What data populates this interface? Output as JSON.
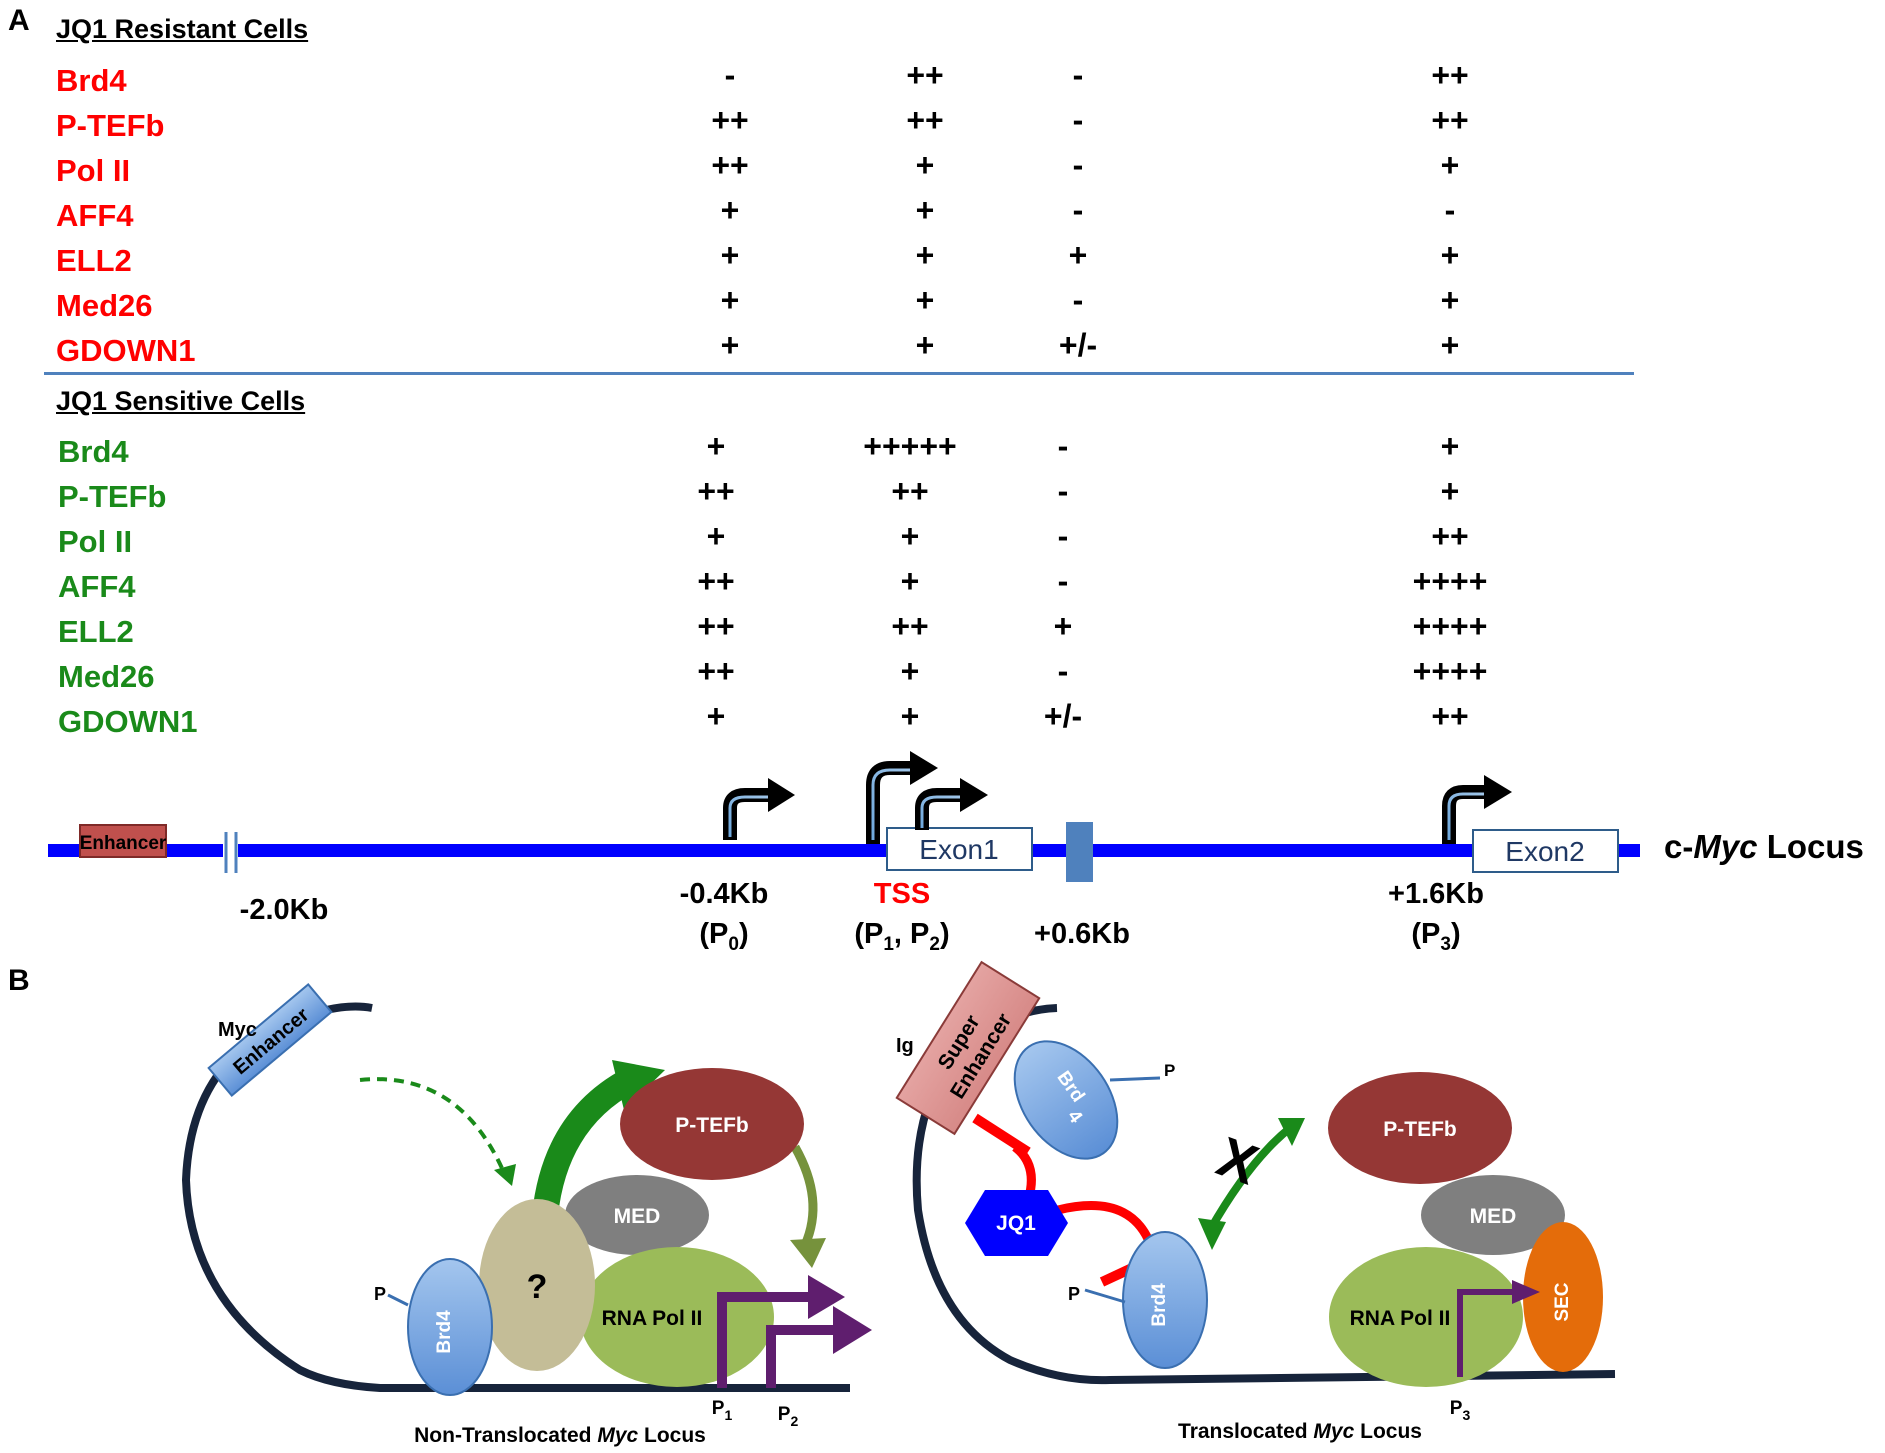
{
  "panel_a": {
    "letter": "A",
    "resistant": {
      "title": "JQ1 Resistant Cells",
      "rows": [
        {
          "protein": "Brd4",
          "p0": "-",
          "tss": "++",
          "p06": "-",
          "p3": "++"
        },
        {
          "protein": "P-TEFb",
          "p0": "++",
          "tss": "++",
          "p06": "-",
          "p3": "++"
        },
        {
          "protein": "Pol II",
          "p0": "++",
          "tss": "+",
          "p06": "-",
          "p3": "+"
        },
        {
          "protein": "AFF4",
          "p0": "+",
          "tss": "+",
          "p06": "-",
          "p3": "-"
        },
        {
          "protein": "ELL2",
          "p0": "+",
          "tss": "+",
          "p06": "+",
          "p3": "+"
        },
        {
          "protein": "Med26",
          "p0": "+",
          "tss": "+",
          "p06": "-",
          "p3": "+"
        },
        {
          "protein": "GDOWN1",
          "p0": "+",
          "tss": "+",
          "p06": "+/-",
          "p3": "+"
        }
      ]
    },
    "sensitive": {
      "title": "JQ1 Sensitive Cells",
      "rows": [
        {
          "protein": "Brd4",
          "p0": "+",
          "tss": "+++++",
          "p06": "-",
          "p3": "+"
        },
        {
          "protein": "P-TEFb",
          "p0": "++",
          "tss": "++",
          "p06": "-",
          "p3": "+"
        },
        {
          "protein": "Pol II",
          "p0": "+",
          "tss": "+",
          "p06": "-",
          "p3": "++"
        },
        {
          "protein": "AFF4",
          "p0": "++",
          "tss": "+",
          "p06": "-",
          "p3": "++++"
        },
        {
          "protein": "ELL2",
          "p0": "++",
          "tss": "++",
          "p06": "+",
          "p3": "++++"
        },
        {
          "protein": "Med26",
          "p0": "++",
          "tss": "+",
          "p06": "-",
          "p3": "++++"
        },
        {
          "protein": "GDOWN1",
          "p0": "+",
          "tss": "+",
          "p06": "+/-",
          "p3": "++"
        }
      ]
    },
    "locus": {
      "enhancer": "Enhancer",
      "exon1": "Exon1",
      "exon2": "Exon2",
      "title_prefix": "c-",
      "title_italic": "Myc",
      "title_suffix": " Locus",
      "pos_minus2": "-2.0Kb",
      "pos_p0": "-0.4Kb",
      "p0_open": "(P",
      "p0_sub": "0",
      "p0_close": ")",
      "tss": "TSS",
      "p12_open": "(P",
      "p12_sub1": "1",
      "p12_mid": ", P",
      "p12_sub2": "2",
      "p12_close": ")",
      "pos_p06": "+0.6Kb",
      "pos_p3": "+1.6Kb",
      "p3_open": "(P",
      "p3_sub": "3",
      "p3_close": ")"
    },
    "colors": {
      "resistant": "#ff0000",
      "sensitive": "#1a8a1a",
      "locus_line": "#0000ff",
      "divider": "#4f81bd"
    }
  },
  "panel_b": {
    "letter": "B",
    "left": {
      "myc_label": "Myc",
      "enhancer": "Enhancer",
      "unknown": "?",
      "ptefb": "P-TEFb",
      "med": "MED",
      "rnapol": "RNA Pol II",
      "brd4": "Brd4",
      "phospho": "P",
      "p1": "P",
      "p1_sub": "1",
      "p2": "P",
      "p2_sub": "2",
      "caption_prefix": "Non-Translocated ",
      "caption_italic": "Myc",
      "caption_suffix": " Locus"
    },
    "right": {
      "ig_label": "Ig",
      "super_enhancer_1": "Super",
      "super_enhancer_2": "Enhancer",
      "brd_top": "Brd",
      "brd_bottom": "4",
      "phospho_top": "P",
      "jq1": "JQ1",
      "cross": "X",
      "ptefb": "P-TEFb",
      "med": "MED",
      "rnapol": "RNA Pol II",
      "sec": "SEC",
      "brd4": "Brd4",
      "phospho": "P",
      "p3": "P",
      "p3_sub": "3",
      "caption_prefix": "Translocated ",
      "caption_italic": "Myc",
      "caption_suffix": " Locus"
    }
  }
}
